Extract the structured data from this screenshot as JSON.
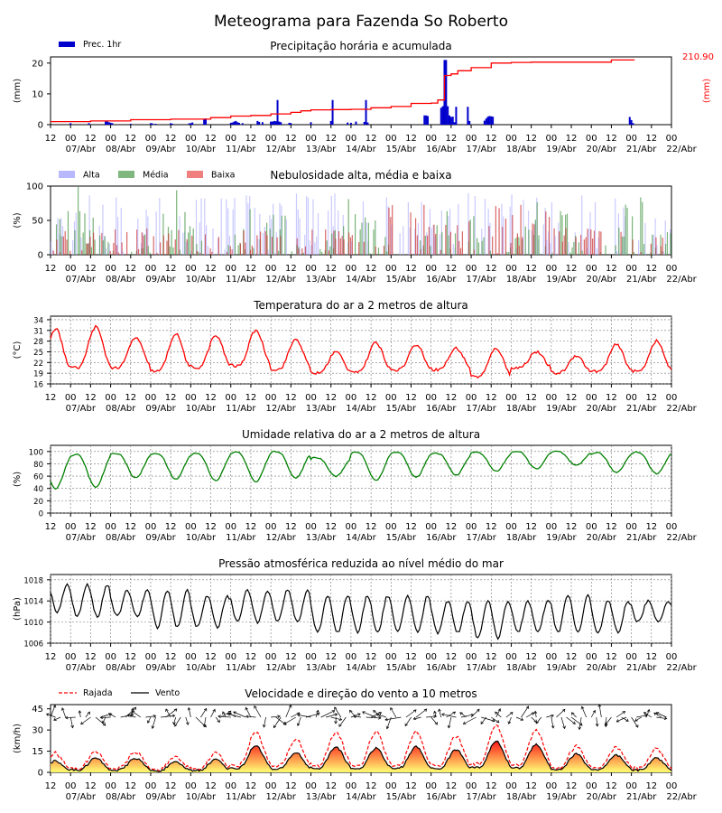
{
  "title": "Meteograma para Fazenda So Roberto",
  "x_axis": {
    "tick_labels": [
      "12",
      "00",
      "12",
      "00",
      "12",
      "00",
      "12",
      "00",
      "12",
      "00",
      "12",
      "00",
      "12",
      "00",
      "12",
      "00",
      "12",
      "00",
      "12",
      "00",
      "12",
      "00",
      "12",
      "00",
      "12",
      "00",
      "12",
      "00",
      "12",
      "00",
      "12",
      "00"
    ],
    "date_labels": [
      "07/Abr",
      "08/Abr",
      "09/Abr",
      "10/Abr",
      "11/Abr",
      "12/Abr",
      "13/Abr",
      "14/Abr",
      "15/Abr",
      "16/Abr",
      "17/Abr",
      "18/Abr",
      "19/Abr",
      "20/Abr",
      "21/Abr",
      "22/Abr"
    ]
  },
  "chart_data": [
    {
      "id": "precip",
      "type": "bar",
      "title": "Precipitação horária e acumulada",
      "ylabel": "(mm)",
      "ylabel_right": "(mm)",
      "ylim": [
        0,
        22
      ],
      "yticks": [
        0,
        10,
        20
      ],
      "legend": [
        "Prec. 1hr"
      ],
      "accumulated_total_label": "210.90",
      "colors": {
        "bars": "#0000cc",
        "accum": "#ff0000"
      },
      "bars_x_hours": [
        12,
        23,
        33,
        34,
        35,
        36,
        37,
        48,
        60,
        61,
        63,
        72,
        73,
        83,
        84,
        85,
        92,
        93,
        108,
        109,
        110,
        111,
        112,
        113,
        115,
        124,
        125,
        127,
        132,
        133,
        134,
        135,
        136,
        137,
        138,
        143,
        144,
        156,
        168,
        169,
        178,
        180,
        183,
        188,
        189,
        190,
        224,
        225,
        226,
        234,
        235,
        236,
        237,
        238,
        239,
        240,
        241,
        242,
        243,
        250,
        251,
        260,
        261,
        262,
        263,
        264,
        265,
        347,
        348,
        349
      ],
      "bars_values": [
        0.5,
        0.5,
        1,
        1,
        0.8,
        0.6,
        0.5,
        0.3,
        0.5,
        0.4,
        0.3,
        0.5,
        0.3,
        0.4,
        0.5,
        0.7,
        1.8,
        2,
        0.6,
        0.7,
        1,
        1.2,
        0.8,
        0.6,
        0.5,
        1.2,
        0.9,
        0.8,
        1,
        1,
        1.2,
        1.1,
        8,
        1,
        0.8,
        0.6,
        0.5,
        0.8,
        1.2,
        8,
        0.7,
        0.6,
        1,
        0.9,
        8,
        0.7,
        3,
        3,
        2.8,
        5.5,
        6,
        21,
        21,
        6,
        3,
        2.5,
        2.6,
        0.8,
        5.8,
        5.8,
        1.2,
        1.3,
        2,
        2.6,
        2.8,
        2.7,
        2.6,
        2.5,
        1.5,
        0.5
      ],
      "accum_x_hours": [
        0,
        24,
        48,
        72,
        96,
        108,
        120,
        132,
        144,
        150,
        156,
        168,
        180,
        192,
        204,
        216,
        228,
        232,
        236,
        240,
        244,
        252,
        264,
        276,
        288,
        312,
        336,
        350
      ],
      "accum_values": [
        1,
        1.2,
        1.6,
        1.8,
        2.3,
        2.8,
        3,
        3.5,
        4,
        4.5,
        4.8,
        4.9,
        5,
        5.5,
        5.9,
        6.9,
        7,
        8,
        16,
        16.5,
        17.5,
        18.5,
        20,
        20.2,
        20.3,
        20.3,
        21,
        21
      ]
    },
    {
      "id": "clouds",
      "type": "bar",
      "title": "Nebulosidade alta, média e baixa",
      "ylabel": "(%)",
      "ylim": [
        0,
        100
      ],
      "yticks": [
        0,
        50,
        100
      ],
      "legend": [
        "Alta",
        "Média",
        "Baixa"
      ],
      "colors": {
        "alta": "#b3b3ff",
        "media": "#4c994c",
        "baixa": "#cc3333"
      },
      "note_values": "hourly cloud cover in percent",
      "seed_profile": "dense"
    },
    {
      "id": "temp",
      "type": "line",
      "title": "Temperatura do ar a 2 metros de altura",
      "ylabel": "(°C)",
      "ylim": [
        16,
        35
      ],
      "yticks": [
        16,
        19,
        22,
        25,
        28,
        31,
        34
      ],
      "color": "#ff0000",
      "daily_max": [
        31.5,
        32,
        29,
        30,
        29.5,
        31,
        28.5,
        25,
        27.5,
        27,
        26,
        26,
        25,
        24,
        27,
        28
      ],
      "daily_min": [
        19.5,
        20.5,
        20.5,
        19.5,
        20.5,
        21,
        20,
        19,
        19.5,
        20,
        20,
        18,
        20.5,
        19,
        19.5,
        19.5
      ]
    },
    {
      "id": "rh",
      "type": "line",
      "title": "Umidade relativa do ar a 2 metros de altura",
      "ylabel": "(%)",
      "ylim": [
        0,
        110
      ],
      "yticks": [
        0,
        20,
        40,
        60,
        80,
        100
      ],
      "color": "#008000",
      "daily_max": [
        95,
        95,
        97,
        97,
        97,
        99,
        100,
        90,
        99,
        99,
        97,
        99,
        100,
        100,
        98,
        99
      ],
      "daily_min": [
        40,
        42,
        57,
        55,
        53,
        51,
        57,
        60,
        53,
        58,
        62,
        68,
        72,
        77,
        66,
        64
      ]
    },
    {
      "id": "pressure",
      "type": "line",
      "title": "Pressão atmosférica reduzida ao nível médio do mar",
      "ylabel": "(hPa)",
      "ylim": [
        1006,
        1019
      ],
      "yticks": [
        1006,
        1010,
        1014,
        1018
      ],
      "color": "#000000",
      "daily_max": [
        1017,
        1017,
        1016,
        1016,
        1015,
        1016,
        1016,
        1015,
        1015,
        1015,
        1014,
        1014,
        1014,
        1015,
        1014,
        1014
      ],
      "daily_min": [
        1012,
        1011,
        1011,
        1009,
        1009,
        1010,
        1010,
        1008,
        1008,
        1008,
        1008,
        1007,
        1008,
        1008,
        1008,
        1010
      ]
    },
    {
      "id": "wind",
      "type": "line",
      "title": "Velocidade e direção do vento a 10 metros",
      "ylabel": "(km/h)",
      "ylim": [
        0,
        48
      ],
      "yticks": [
        0,
        15,
        30,
        45
      ],
      "legend": [
        "Rajada",
        "Vento"
      ],
      "colors": {
        "gust": "#ff0000",
        "wind": "#000000",
        "fill_top": "#ff0000",
        "fill_bottom": "#ffff66"
      },
      "daily_wind_max": [
        8,
        10,
        10,
        7,
        9,
        19,
        14,
        18,
        17,
        18,
        16,
        22,
        20,
        13,
        12,
        10
      ],
      "daily_gust_max": [
        13,
        14,
        14,
        10,
        13,
        28,
        23,
        28,
        28,
        28,
        25,
        33,
        30,
        18,
        17,
        16
      ]
    }
  ]
}
